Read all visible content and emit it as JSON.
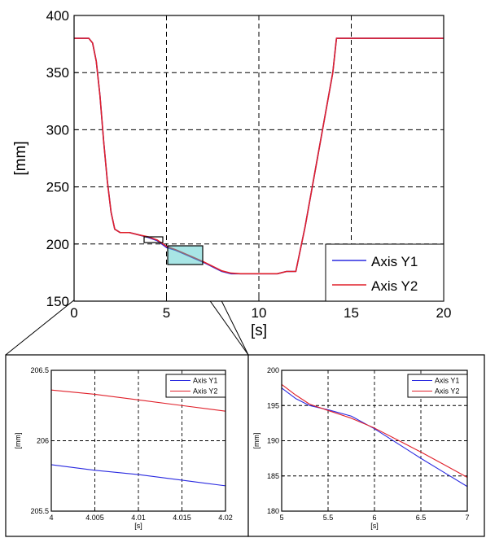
{
  "chart_data": [
    {
      "id": "main",
      "type": "line",
      "xlabel": "[s]",
      "ylabel": "[mm]",
      "xlim": [
        0,
        20
      ],
      "ylim": [
        150,
        400
      ],
      "xticks": [
        "0",
        "5",
        "10",
        "15",
        "20"
      ],
      "yticks": [
        "150",
        "200",
        "250",
        "300",
        "350",
        "400"
      ],
      "grid": true,
      "legend_position": "bottom-right",
      "series": [
        {
          "name": "Axis Y1",
          "color": "#2a2ae0",
          "x": [
            0,
            0.8,
            1.0,
            1.2,
            1.4,
            1.6,
            1.8,
            2.0,
            2.2,
            2.5,
            3.0,
            3.5,
            4.0,
            4.5,
            5.0,
            5.5,
            6.0,
            6.5,
            7.0,
            7.5,
            8.0,
            8.5,
            9.0,
            10.0,
            11.0,
            11.5,
            12.0,
            12.5,
            13.0,
            13.5,
            14.0,
            14.2,
            15.0,
            20.0
          ],
          "y": [
            380,
            380,
            376,
            360,
            330,
            290,
            255,
            228,
            213,
            210,
            210,
            208,
            205.8,
            203,
            197,
            194.5,
            191,
            187.5,
            184,
            180,
            176,
            174,
            174,
            174,
            174,
            176,
            176,
            215,
            260,
            305,
            350,
            380,
            380,
            380
          ]
        },
        {
          "name": "Axis Y2",
          "color": "#e0202a",
          "x": [
            0,
            0.8,
            1.0,
            1.2,
            1.4,
            1.6,
            1.8,
            2.0,
            2.2,
            2.5,
            3.0,
            3.5,
            4.0,
            4.5,
            5.0,
            5.5,
            6.0,
            6.5,
            7.0,
            7.5,
            8.0,
            8.5,
            9.0,
            10.0,
            11.0,
            11.5,
            12.0,
            12.5,
            13.0,
            13.5,
            14.0,
            14.2,
            15.0,
            20.0
          ],
          "y": [
            380,
            380,
            376,
            360,
            330,
            290,
            255,
            228,
            213,
            210,
            210,
            208,
            206.35,
            203.5,
            198,
            195,
            191.5,
            188,
            184.5,
            180.5,
            176.5,
            174.5,
            174,
            174,
            174,
            176,
            176,
            215,
            260,
            305,
            350,
            380,
            380,
            380
          ]
        }
      ]
    },
    {
      "id": "zoom-left",
      "type": "line",
      "xlabel": "[s]",
      "ylabel": "[mm]",
      "xlim": [
        4,
        4.02
      ],
      "ylim": [
        205.5,
        206.5
      ],
      "xticks": [
        "4",
        "4.005",
        "4.01",
        "4.015",
        "4.02"
      ],
      "yticks": [
        "205.5",
        "206",
        "206.5"
      ],
      "grid": true,
      "legend_position": "top-right",
      "series": [
        {
          "name": "Axis Y1",
          "color": "#2a2ae0",
          "x": [
            4,
            4.005,
            4.01,
            4.015,
            4.02
          ],
          "y": [
            205.83,
            205.79,
            205.76,
            205.72,
            205.68
          ]
        },
        {
          "name": "Axis Y2",
          "color": "#e0202a",
          "x": [
            4,
            4.005,
            4.01,
            4.015,
            4.02
          ],
          "y": [
            206.36,
            206.33,
            206.29,
            206.25,
            206.21
          ]
        }
      ]
    },
    {
      "id": "zoom-right",
      "type": "line",
      "xlabel": "[s]",
      "ylabel": "[mm]",
      "xlim": [
        5,
        7
      ],
      "ylim": [
        180,
        200
      ],
      "xticks": [
        "5",
        "5.5",
        "6",
        "6.5",
        "7"
      ],
      "yticks": [
        "180",
        "185",
        "190",
        "195",
        "200"
      ],
      "grid": true,
      "legend_position": "top-right",
      "series": [
        {
          "name": "Axis Y1",
          "color": "#2a2ae0",
          "x": [
            5,
            5.15,
            5.3,
            5.5,
            5.75,
            6.0,
            6.25,
            6.5,
            6.75,
            7.0
          ],
          "y": [
            197.5,
            196,
            195,
            194.4,
            193.5,
            191.7,
            189.6,
            187.5,
            185.5,
            183.5
          ]
        },
        {
          "name": "Axis Y2",
          "color": "#e0202a",
          "x": [
            5,
            5.15,
            5.3,
            5.5,
            5.75,
            6.0,
            6.25,
            6.5,
            6.75,
            7.0
          ],
          "y": [
            198,
            196.5,
            195.2,
            194.3,
            193.2,
            191.8,
            190.1,
            188.4,
            186.6,
            184.8
          ]
        }
      ]
    }
  ]
}
